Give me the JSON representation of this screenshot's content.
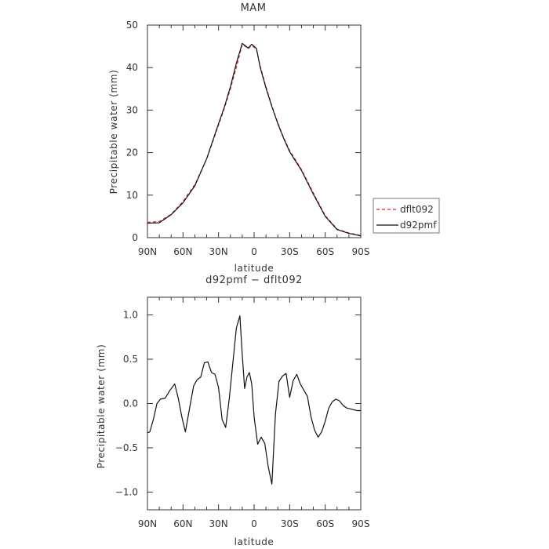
{
  "chart_data": [
    {
      "type": "line",
      "title": "MAM",
      "xlabel": "latitude",
      "ylabel": "Precipitable water (mm)",
      "xlim": [
        90,
        -90
      ],
      "ylim": [
        0,
        50
      ],
      "xticks": [
        90,
        60,
        30,
        0,
        -30,
        -60,
        -90
      ],
      "xtick_labels": [
        "90N",
        "60N",
        "30N",
        "0",
        "30S",
        "60S",
        "90S"
      ],
      "yticks": [
        0,
        10,
        20,
        30,
        40,
        50
      ],
      "ytick_labels": [
        "0",
        "10",
        "20",
        "30",
        "40",
        "50"
      ],
      "legend_position": "right",
      "x": [
        90,
        80,
        70,
        60,
        50,
        40,
        30,
        25,
        20,
        15,
        10,
        5,
        2,
        0,
        -2,
        -5,
        -10,
        -15,
        -20,
        -25,
        -30,
        -40,
        -50,
        -60,
        -70,
        -80,
        -90
      ],
      "series": [
        {
          "name": "dflt092",
          "style": "dashed",
          "color": "#d62728",
          "values": [
            3.6,
            3.8,
            5.5,
            8.5,
            12.5,
            18.5,
            26.5,
            30.5,
            35,
            40,
            45.5,
            44.5,
            45.2,
            44.8,
            44.2,
            40.5,
            35.5,
            31,
            27,
            23.5,
            20.5,
            16,
            10.5,
            5.2,
            2.0,
            1.1,
            0.5
          ]
        },
        {
          "name": "d92pmf",
          "style": "solid",
          "color": "#111111",
          "values": [
            3.4,
            3.5,
            5.4,
            8.2,
            12.2,
            18.6,
            26.8,
            30.8,
            35.5,
            41,
            45.7,
            44.6,
            45.5,
            45.0,
            44.5,
            40.2,
            35.2,
            30.8,
            26.8,
            23.3,
            20.2,
            15.8,
            10.2,
            5.0,
            1.9,
            1.0,
            0.4
          ]
        }
      ]
    },
    {
      "type": "line",
      "title": "d92pmf − dflt092",
      "xlabel": "latitude",
      "ylabel": "Precipitable water (mm)",
      "xlim": [
        90,
        -90
      ],
      "ylim": [
        -1.2,
        1.2
      ],
      "xticks": [
        90,
        60,
        30,
        0,
        -30,
        -60,
        -90
      ],
      "xtick_labels": [
        "90N",
        "60N",
        "30N",
        "0",
        "30S",
        "60S",
        "90S"
      ],
      "yticks": [
        -1.0,
        -0.5,
        0.0,
        0.5,
        1.0
      ],
      "ytick_labels": [
        "−1.0",
        "−0.5",
        "0.0",
        "0.5",
        "1.0"
      ],
      "x": [
        90,
        88,
        85,
        82,
        79,
        75,
        71,
        67,
        64,
        61,
        58,
        54,
        51,
        48,
        45,
        42,
        39,
        36,
        33,
        30,
        27,
        24,
        21,
        18,
        15,
        12,
        10,
        8,
        6,
        4,
        2,
        0,
        -3,
        -6,
        -9,
        -12,
        -15,
        -18,
        -21,
        -24,
        -27,
        -30,
        -33,
        -36,
        -39,
        -42,
        -45,
        -48,
        -51,
        -54,
        -57,
        -60,
        -63,
        -66,
        -69,
        -72,
        -75,
        -78,
        -81,
        -84,
        -87,
        -90
      ],
      "series": [
        {
          "name": "",
          "style": "solid",
          "color": "#111111",
          "values": [
            -0.33,
            -0.32,
            -0.18,
            0.0,
            0.05,
            0.06,
            0.15,
            0.22,
            0.06,
            -0.15,
            -0.32,
            -0.02,
            0.2,
            0.27,
            0.3,
            0.46,
            0.47,
            0.35,
            0.33,
            0.18,
            -0.18,
            -0.27,
            0.05,
            0.45,
            0.85,
            0.99,
            0.55,
            0.17,
            0.3,
            0.35,
            0.22,
            -0.15,
            -0.46,
            -0.38,
            -0.45,
            -0.72,
            -0.91,
            -0.12,
            0.25,
            0.31,
            0.34,
            0.07,
            0.26,
            0.33,
            0.22,
            0.15,
            0.08,
            -0.15,
            -0.3,
            -0.38,
            -0.32,
            -0.2,
            -0.05,
            0.02,
            0.05,
            0.03,
            -0.02,
            -0.05,
            -0.06,
            -0.07,
            -0.08,
            -0.08
          ]
        }
      ]
    }
  ]
}
